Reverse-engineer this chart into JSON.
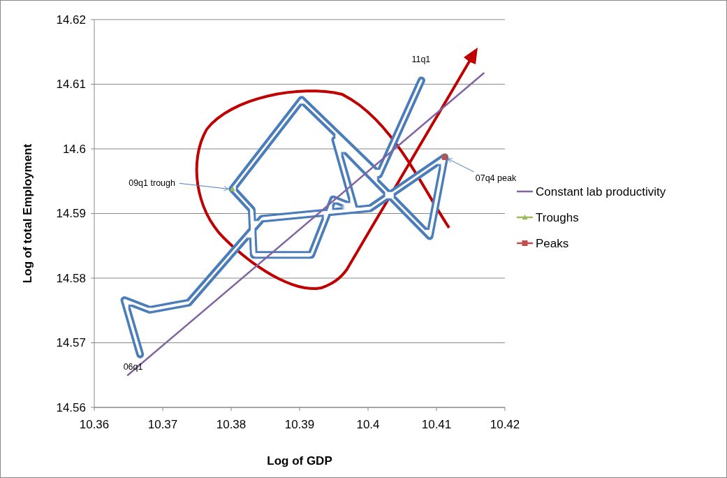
{
  "chart_data": {
    "type": "line",
    "xlabel": "Log of GDP",
    "ylabel": "Log of total Employment",
    "xlim": [
      10.36,
      10.42
    ],
    "xticks": [
      10.36,
      10.37,
      10.38,
      10.39,
      10.4,
      10.41,
      10.42
    ],
    "ylim": [
      14.56,
      14.62
    ],
    "yticks": [
      14.56,
      14.57,
      14.58,
      14.59,
      14.6,
      14.61,
      14.62
    ],
    "grid": "y",
    "legend": "right",
    "series": [
      {
        "color": "#4a7ebb",
        "marker": "none",
        "x": [
          10.3667,
          10.3644,
          10.3681,
          10.3738,
          10.3845,
          10.4003,
          10.4112,
          10.409,
          10.3952,
          10.398,
          10.3949,
          10.3917,
          10.3833,
          10.383,
          10.3802,
          10.3903,
          10.4016,
          10.4078
        ],
        "values": [
          14.5682,
          14.5766,
          14.5751,
          14.5762,
          14.5892,
          14.5908,
          14.5987,
          14.5865,
          14.6014,
          14.5909,
          14.5922,
          14.5836,
          14.5836,
          14.5906,
          14.5938,
          14.6076,
          14.596,
          14.6106
        ]
      },
      {
        "name": "Constant lab productivity",
        "color": "#8064a2",
        "marker": "none",
        "x": [
          10.3649,
          10.4169
        ],
        "values": [
          14.565,
          14.6117
        ]
      },
      {
        "name": "Troughs",
        "type": "scatter",
        "color": "#9bbb59",
        "marker": "triangle",
        "x": [
          10.3802
        ],
        "values": [
          14.5938
        ]
      },
      {
        "name": "Peaks",
        "type": "scatter",
        "color": "#c0504d",
        "marker": "square",
        "x": [
          10.4112
        ],
        "values": [
          14.5987
        ]
      }
    ],
    "annotations": [
      {
        "text": "06q1",
        "x": 10.3667,
        "y": 14.5682
      },
      {
        "text": "11q1",
        "x": 10.4078,
        "y": 14.6106
      },
      {
        "text": "09q1 trough",
        "x": 10.3802,
        "y": 14.5938
      },
      {
        "text": "07q4 peak",
        "x": 10.4112,
        "y": 14.5987
      }
    ]
  }
}
